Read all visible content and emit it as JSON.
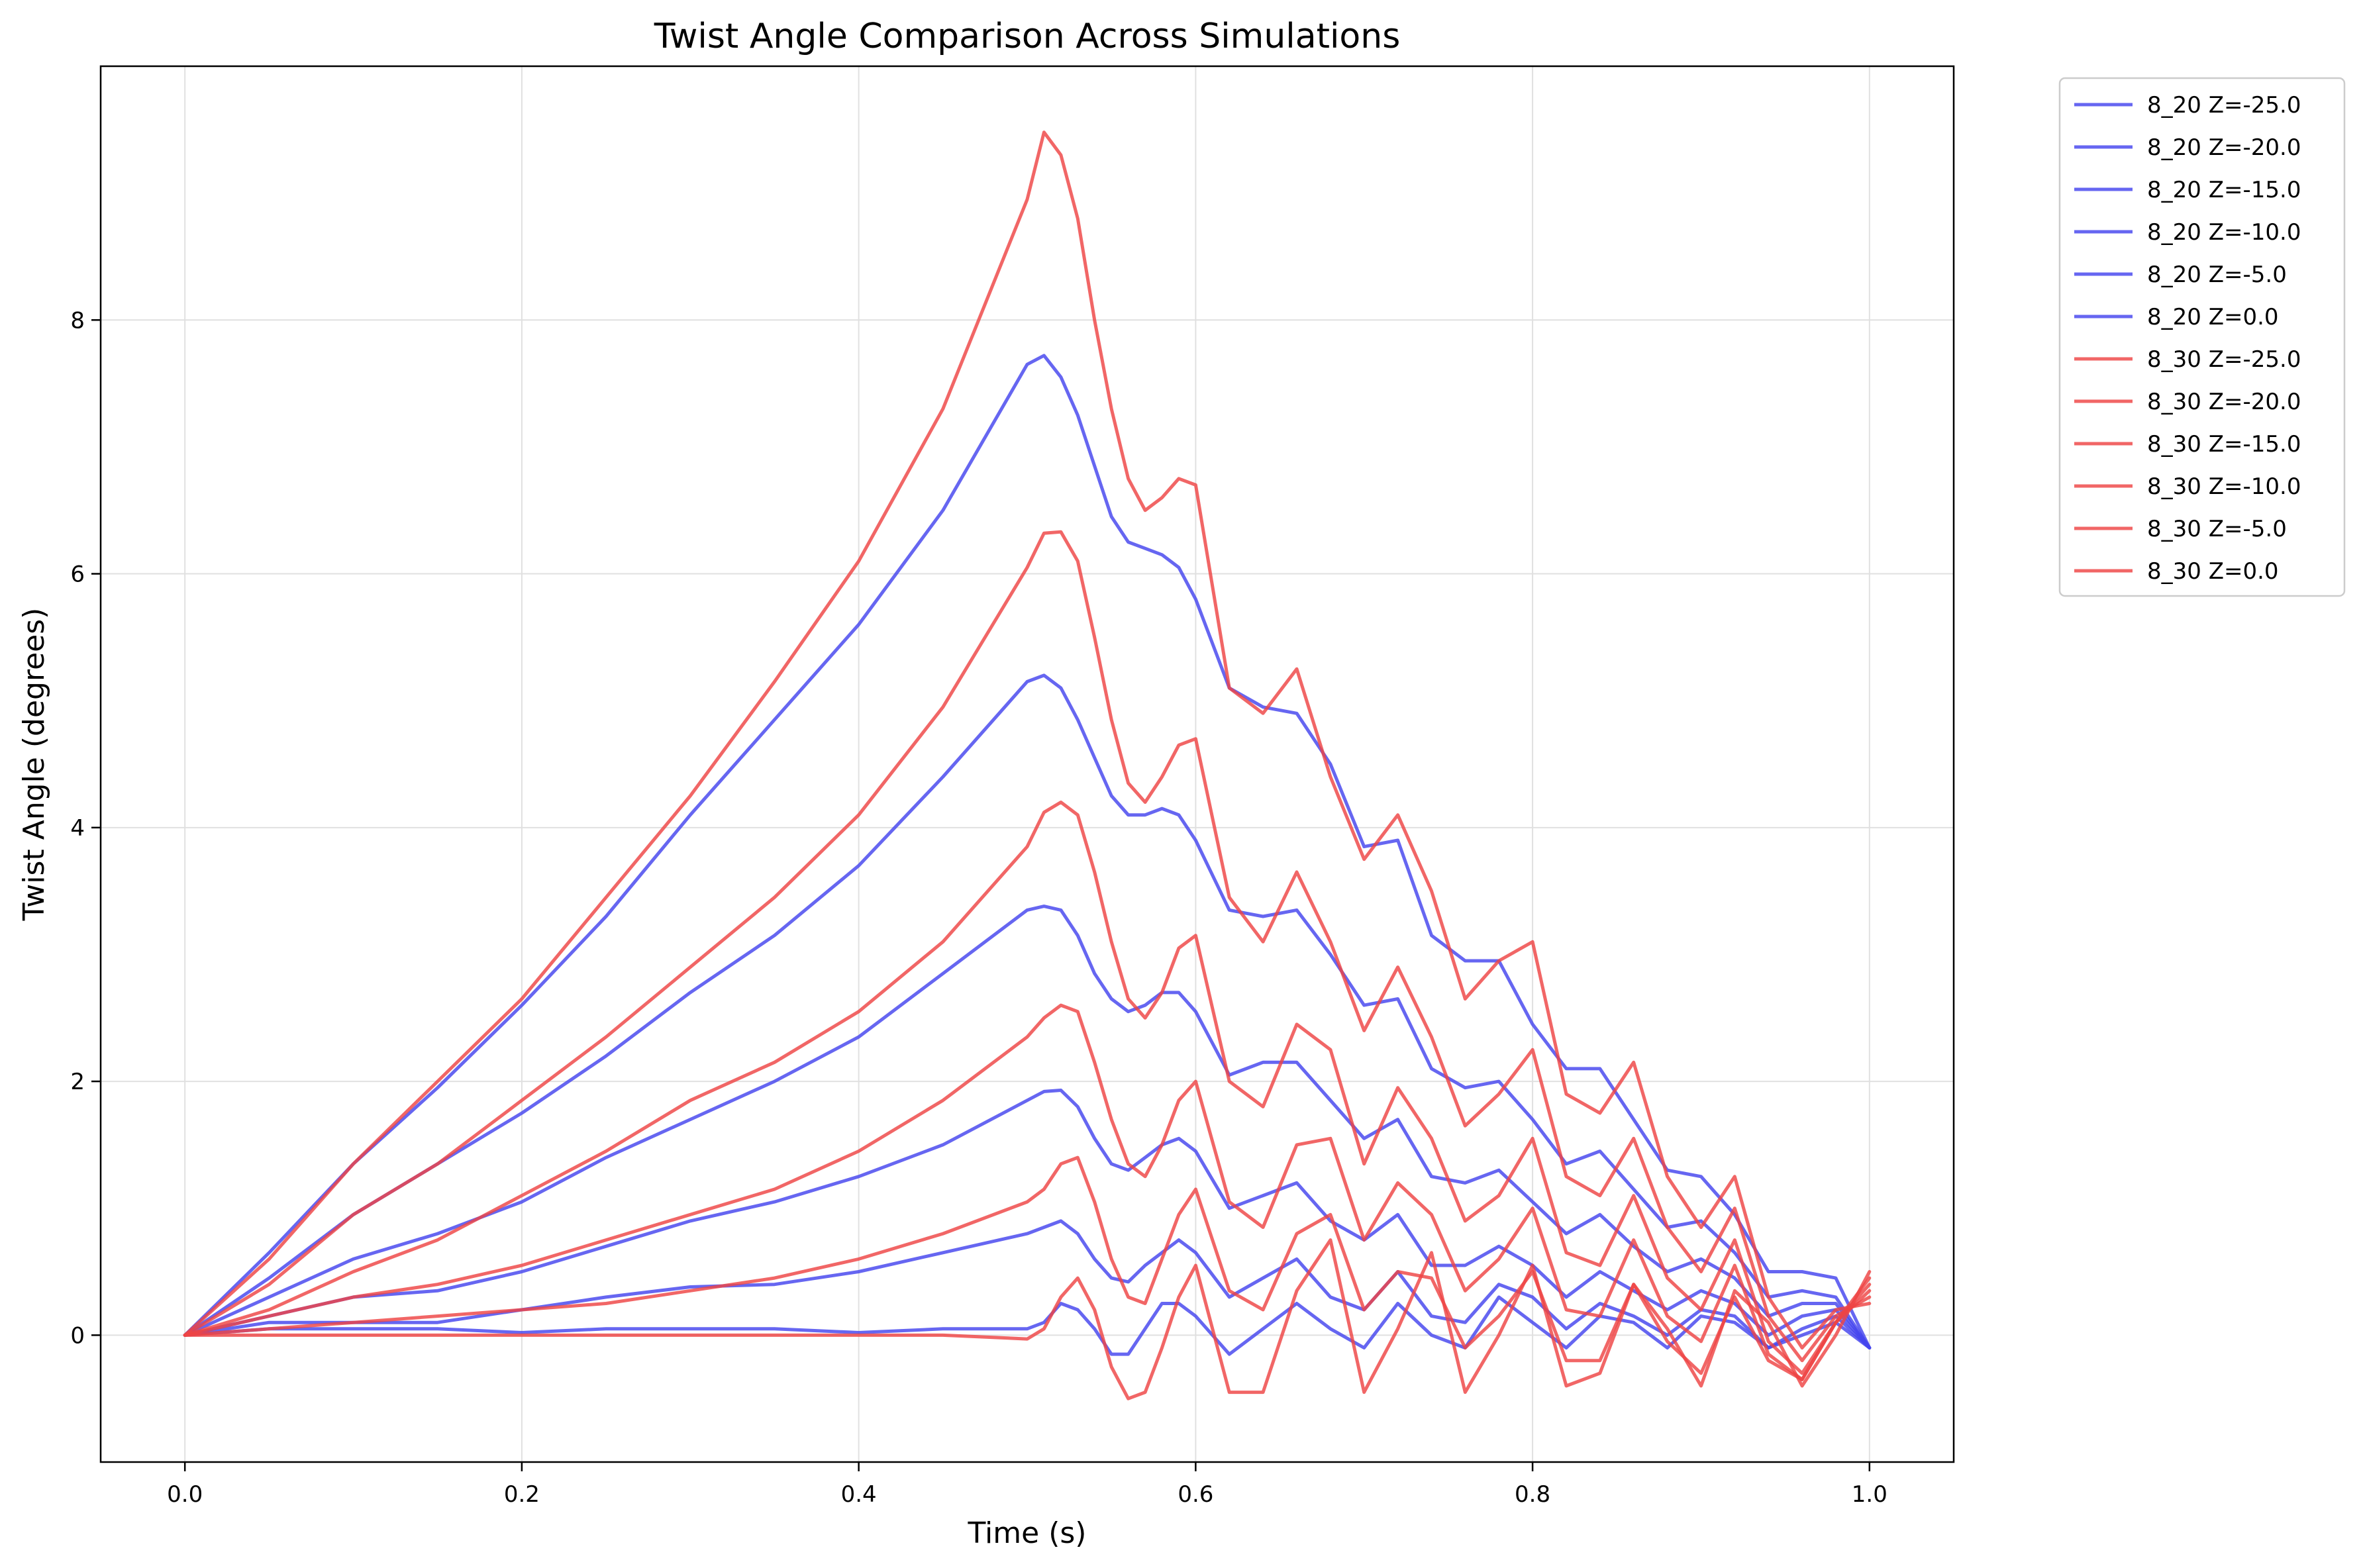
{
  "chart_data": {
    "type": "line",
    "title": "Twist Angle Comparison Across Simulations",
    "xlabel": "Time (s)",
    "ylabel": "Twist Angle (degrees)",
    "xlim": [
      -0.05,
      1.05
    ],
    "ylim": [
      -1.0,
      10.0
    ],
    "xticks": [
      "0.0",
      "0.2",
      "0.4",
      "0.6",
      "0.8",
      "1.0"
    ],
    "yticks": [
      "0",
      "2",
      "4",
      "6",
      "8"
    ],
    "grid": true,
    "legend_position": "outside-top-right",
    "colors": {
      "8_20": "#4444ee",
      "8_30": "#ee4444"
    },
    "series": [
      {
        "name": "8_20 Z=-25.0",
        "group": "8_20",
        "x": [
          0,
          0.05,
          0.1,
          0.15,
          0.2,
          0.25,
          0.3,
          0.35,
          0.4,
          0.45,
          0.5,
          0.51,
          0.52,
          0.53,
          0.54,
          0.55,
          0.56,
          0.57,
          0.58,
          0.59,
          0.6,
          0.62,
          0.64,
          0.66,
          0.68,
          0.7,
          0.72,
          0.74,
          0.76,
          0.78,
          0.8,
          0.82,
          0.84,
          0.86,
          0.88,
          0.9,
          0.92,
          0.94,
          0.96,
          0.98,
          1.0
        ],
        "values": [
          0,
          0.65,
          1.35,
          1.95,
          2.6,
          3.3,
          4.1,
          4.85,
          5.6,
          6.5,
          7.65,
          7.72,
          7.55,
          7.25,
          6.85,
          6.45,
          6.25,
          6.2,
          6.15,
          6.05,
          5.8,
          5.1,
          4.95,
          4.9,
          4.5,
          3.85,
          3.9,
          3.15,
          2.95,
          2.95,
          2.45,
          2.1,
          2.1,
          1.7,
          1.3,
          1.25,
          0.95,
          0.5,
          0.5,
          0.45,
          -0.1
        ]
      },
      {
        "name": "8_20 Z=-20.0",
        "group": "8_20",
        "x": [
          0,
          0.05,
          0.1,
          0.15,
          0.2,
          0.25,
          0.3,
          0.35,
          0.4,
          0.45,
          0.5,
          0.51,
          0.52,
          0.53,
          0.54,
          0.55,
          0.56,
          0.57,
          0.58,
          0.59,
          0.6,
          0.62,
          0.64,
          0.66,
          0.68,
          0.7,
          0.72,
          0.74,
          0.76,
          0.78,
          0.8,
          0.82,
          0.84,
          0.86,
          0.88,
          0.9,
          0.92,
          0.94,
          0.96,
          0.98,
          1.0
        ],
        "values": [
          0,
          0.45,
          0.95,
          1.35,
          1.75,
          2.2,
          2.7,
          3.15,
          3.7,
          4.4,
          5.15,
          5.2,
          5.1,
          4.85,
          4.55,
          4.25,
          4.1,
          4.1,
          4.15,
          4.1,
          3.9,
          3.35,
          3.3,
          3.35,
          3.0,
          2.6,
          2.65,
          2.1,
          1.95,
          2.0,
          1.7,
          1.35,
          1.45,
          1.15,
          0.85,
          0.9,
          0.65,
          0.3,
          0.35,
          0.3,
          -0.1
        ]
      },
      {
        "name": "8_20 Z=-15.0",
        "group": "8_20",
        "x": [
          0,
          0.05,
          0.1,
          0.15,
          0.2,
          0.25,
          0.3,
          0.35,
          0.4,
          0.45,
          0.5,
          0.51,
          0.52,
          0.53,
          0.54,
          0.55,
          0.56,
          0.57,
          0.58,
          0.59,
          0.6,
          0.62,
          0.64,
          0.66,
          0.68,
          0.7,
          0.72,
          0.74,
          0.76,
          0.78,
          0.8,
          0.82,
          0.84,
          0.86,
          0.88,
          0.9,
          0.92,
          0.94,
          0.96,
          0.98,
          1.0
        ],
        "values": [
          0,
          0.3,
          0.6,
          0.8,
          1.05,
          1.4,
          1.7,
          2.0,
          2.35,
          2.85,
          3.35,
          3.38,
          3.35,
          3.15,
          2.85,
          2.65,
          2.55,
          2.6,
          2.7,
          2.7,
          2.55,
          2.05,
          2.15,
          2.15,
          1.85,
          1.55,
          1.7,
          1.25,
          1.2,
          1.3,
          1.05,
          0.8,
          0.95,
          0.7,
          0.5,
          0.6,
          0.45,
          0.15,
          0.25,
          0.25,
          -0.1
        ]
      },
      {
        "name": "8_20 Z=-10.0",
        "group": "8_20",
        "x": [
          0,
          0.05,
          0.1,
          0.15,
          0.2,
          0.25,
          0.3,
          0.35,
          0.4,
          0.45,
          0.5,
          0.51,
          0.52,
          0.53,
          0.54,
          0.55,
          0.56,
          0.57,
          0.58,
          0.59,
          0.6,
          0.62,
          0.64,
          0.66,
          0.68,
          0.7,
          0.72,
          0.74,
          0.76,
          0.78,
          0.8,
          0.82,
          0.84,
          0.86,
          0.88,
          0.9,
          0.92,
          0.94,
          0.96,
          0.98,
          1.0
        ],
        "values": [
          0,
          0.15,
          0.3,
          0.35,
          0.5,
          0.7,
          0.9,
          1.05,
          1.25,
          1.5,
          1.85,
          1.92,
          1.93,
          1.8,
          1.55,
          1.35,
          1.3,
          1.4,
          1.5,
          1.55,
          1.45,
          1.0,
          1.1,
          1.2,
          0.9,
          0.75,
          0.95,
          0.55,
          0.55,
          0.7,
          0.55,
          0.3,
          0.5,
          0.35,
          0.2,
          0.35,
          0.25,
          0.0,
          0.15,
          0.2,
          -0.1
        ]
      },
      {
        "name": "8_20 Z=-5.0",
        "group": "8_20",
        "x": [
          0,
          0.05,
          0.1,
          0.15,
          0.2,
          0.25,
          0.3,
          0.35,
          0.4,
          0.45,
          0.5,
          0.51,
          0.52,
          0.53,
          0.54,
          0.55,
          0.56,
          0.57,
          0.58,
          0.59,
          0.6,
          0.62,
          0.64,
          0.66,
          0.68,
          0.7,
          0.72,
          0.74,
          0.76,
          0.78,
          0.8,
          0.82,
          0.84,
          0.86,
          0.88,
          0.9,
          0.92,
          0.94,
          0.96,
          0.98,
          1.0
        ],
        "values": [
          0,
          0.1,
          0.1,
          0.1,
          0.2,
          0.3,
          0.38,
          0.4,
          0.5,
          0.65,
          0.8,
          0.85,
          0.9,
          0.8,
          0.6,
          0.45,
          0.42,
          0.55,
          0.65,
          0.75,
          0.65,
          0.3,
          0.45,
          0.6,
          0.3,
          0.2,
          0.5,
          0.15,
          0.1,
          0.4,
          0.3,
          0.05,
          0.25,
          0.15,
          0.0,
          0.2,
          0.15,
          -0.1,
          0.05,
          0.15,
          -0.1
        ]
      },
      {
        "name": "8_20 Z=0.0",
        "group": "8_20",
        "x": [
          0,
          0.05,
          0.1,
          0.15,
          0.2,
          0.25,
          0.3,
          0.35,
          0.4,
          0.45,
          0.5,
          0.51,
          0.52,
          0.53,
          0.54,
          0.55,
          0.56,
          0.57,
          0.58,
          0.59,
          0.6,
          0.62,
          0.64,
          0.66,
          0.68,
          0.7,
          0.72,
          0.74,
          0.76,
          0.78,
          0.8,
          0.82,
          0.84,
          0.86,
          0.88,
          0.9,
          0.92,
          0.94,
          0.96,
          0.98,
          1.0
        ],
        "values": [
          0,
          0.05,
          0.05,
          0.05,
          0.02,
          0.05,
          0.05,
          0.05,
          0.02,
          0.05,
          0.05,
          0.1,
          0.25,
          0.2,
          0.05,
          -0.15,
          -0.15,
          0.05,
          0.25,
          0.25,
          0.15,
          -0.15,
          0.05,
          0.25,
          0.05,
          -0.1,
          0.25,
          0.0,
          -0.1,
          0.3,
          0.1,
          -0.1,
          0.15,
          0.1,
          -0.1,
          0.15,
          0.1,
          -0.1,
          0.0,
          0.1,
          -0.1
        ]
      },
      {
        "name": "8_30 Z=-25.0",
        "group": "8_30",
        "x": [
          0,
          0.05,
          0.1,
          0.15,
          0.2,
          0.25,
          0.3,
          0.35,
          0.4,
          0.45,
          0.5,
          0.51,
          0.52,
          0.53,
          0.54,
          0.55,
          0.56,
          0.57,
          0.58,
          0.59,
          0.6,
          0.62,
          0.64,
          0.66,
          0.68,
          0.7,
          0.72,
          0.74,
          0.76,
          0.78,
          0.8,
          0.82,
          0.84,
          0.86,
          0.88,
          0.9,
          0.92,
          0.94,
          0.96,
          0.98,
          1.0
        ],
        "values": [
          0,
          0.6,
          1.35,
          2.0,
          2.65,
          3.45,
          4.25,
          5.15,
          6.1,
          7.3,
          8.95,
          9.48,
          9.3,
          8.8,
          8.0,
          7.3,
          6.75,
          6.5,
          6.6,
          6.75,
          6.7,
          5.1,
          4.9,
          5.25,
          4.4,
          3.75,
          4.1,
          3.5,
          2.65,
          2.95,
          3.1,
          1.9,
          1.75,
          2.15,
          1.25,
          0.85,
          1.25,
          0.3,
          -0.1,
          0.2,
          0.25
        ]
      },
      {
        "name": "8_30 Z=-20.0",
        "group": "8_30",
        "x": [
          0,
          0.05,
          0.1,
          0.15,
          0.2,
          0.25,
          0.3,
          0.35,
          0.4,
          0.45,
          0.5,
          0.51,
          0.52,
          0.53,
          0.54,
          0.55,
          0.56,
          0.57,
          0.58,
          0.59,
          0.6,
          0.62,
          0.64,
          0.66,
          0.68,
          0.7,
          0.72,
          0.74,
          0.76,
          0.78,
          0.8,
          0.82,
          0.84,
          0.86,
          0.88,
          0.9,
          0.92,
          0.94,
          0.96,
          0.98,
          1.0
        ],
        "values": [
          0,
          0.4,
          0.95,
          1.35,
          1.85,
          2.35,
          2.9,
          3.45,
          4.1,
          4.95,
          6.05,
          6.32,
          6.33,
          6.1,
          5.5,
          4.85,
          4.35,
          4.2,
          4.4,
          4.65,
          4.7,
          3.45,
          3.1,
          3.65,
          3.1,
          2.4,
          2.9,
          2.35,
          1.65,
          1.9,
          2.25,
          1.25,
          1.1,
          1.55,
          0.85,
          0.5,
          1.0,
          0.15,
          -0.2,
          0.15,
          0.3
        ]
      },
      {
        "name": "8_30 Z=-15.0",
        "group": "8_30",
        "x": [
          0,
          0.05,
          0.1,
          0.15,
          0.2,
          0.25,
          0.3,
          0.35,
          0.4,
          0.45,
          0.5,
          0.51,
          0.52,
          0.53,
          0.54,
          0.55,
          0.56,
          0.57,
          0.58,
          0.59,
          0.6,
          0.62,
          0.64,
          0.66,
          0.68,
          0.7,
          0.72,
          0.74,
          0.76,
          0.78,
          0.8,
          0.82,
          0.84,
          0.86,
          0.88,
          0.9,
          0.92,
          0.94,
          0.96,
          0.98,
          1.0
        ],
        "values": [
          0,
          0.2,
          0.5,
          0.75,
          1.1,
          1.45,
          1.85,
          2.15,
          2.55,
          3.1,
          3.85,
          4.12,
          4.2,
          4.1,
          3.65,
          3.1,
          2.65,
          2.5,
          2.7,
          3.05,
          3.15,
          2.0,
          1.8,
          2.45,
          2.25,
          1.35,
          1.95,
          1.55,
          0.9,
          1.1,
          1.55,
          0.65,
          0.55,
          1.1,
          0.45,
          0.2,
          0.75,
          -0.05,
          -0.3,
          0.1,
          0.35
        ]
      },
      {
        "name": "8_30 Z=-10.0",
        "group": "8_30",
        "x": [
          0,
          0.05,
          0.1,
          0.15,
          0.2,
          0.25,
          0.3,
          0.35,
          0.4,
          0.45,
          0.5,
          0.51,
          0.52,
          0.53,
          0.54,
          0.55,
          0.56,
          0.57,
          0.58,
          0.59,
          0.6,
          0.62,
          0.64,
          0.66,
          0.68,
          0.7,
          0.72,
          0.74,
          0.76,
          0.78,
          0.8,
          0.82,
          0.84,
          0.86,
          0.88,
          0.9,
          0.92,
          0.94,
          0.96,
          0.98,
          1.0
        ],
        "values": [
          0,
          0.15,
          0.3,
          0.4,
          0.55,
          0.75,
          0.95,
          1.15,
          1.45,
          1.85,
          2.35,
          2.5,
          2.6,
          2.55,
          2.15,
          1.7,
          1.35,
          1.25,
          1.5,
          1.85,
          2.0,
          1.05,
          0.85,
          1.5,
          1.55,
          0.75,
          1.2,
          0.95,
          0.35,
          0.6,
          1.0,
          0.2,
          0.15,
          0.75,
          0.15,
          -0.05,
          0.55,
          -0.15,
          -0.35,
          0.1,
          0.4
        ]
      },
      {
        "name": "8_30 Z=-5.0",
        "group": "8_30",
        "x": [
          0,
          0.05,
          0.1,
          0.15,
          0.2,
          0.25,
          0.3,
          0.35,
          0.4,
          0.45,
          0.5,
          0.51,
          0.52,
          0.53,
          0.54,
          0.55,
          0.56,
          0.57,
          0.58,
          0.59,
          0.6,
          0.62,
          0.64,
          0.66,
          0.68,
          0.7,
          0.72,
          0.74,
          0.76,
          0.78,
          0.8,
          0.82,
          0.84,
          0.86,
          0.88,
          0.9,
          0.92,
          0.94,
          0.96,
          0.98,
          1.0
        ],
        "values": [
          0,
          0.05,
          0.1,
          0.15,
          0.2,
          0.25,
          0.35,
          0.45,
          0.6,
          0.8,
          1.05,
          1.15,
          1.35,
          1.4,
          1.05,
          0.6,
          0.3,
          0.25,
          0.6,
          0.95,
          1.15,
          0.35,
          0.2,
          0.8,
          0.95,
          0.2,
          0.5,
          0.45,
          -0.1,
          0.15,
          0.5,
          -0.2,
          -0.2,
          0.4,
          -0.05,
          -0.3,
          0.3,
          -0.2,
          -0.35,
          0.1,
          0.45
        ]
      },
      {
        "name": "8_30 Z=0.0",
        "group": "8_30",
        "x": [
          0,
          0.05,
          0.1,
          0.15,
          0.2,
          0.25,
          0.3,
          0.35,
          0.4,
          0.45,
          0.5,
          0.51,
          0.52,
          0.53,
          0.54,
          0.55,
          0.56,
          0.57,
          0.58,
          0.59,
          0.6,
          0.62,
          0.64,
          0.66,
          0.68,
          0.7,
          0.72,
          0.74,
          0.76,
          0.78,
          0.8,
          0.82,
          0.84,
          0.86,
          0.88,
          0.9,
          0.92,
          0.94,
          0.96,
          0.98,
          1.0
        ],
        "values": [
          0,
          0.0,
          0.0,
          0.0,
          0.0,
          0.0,
          0.0,
          0.0,
          0.0,
          0.0,
          -0.03,
          0.05,
          0.3,
          0.45,
          0.2,
          -0.25,
          -0.5,
          -0.45,
          -0.1,
          0.3,
          0.55,
          -0.45,
          -0.45,
          0.35,
          0.75,
          -0.45,
          0.05,
          0.65,
          -0.45,
          0.0,
          0.55,
          -0.4,
          -0.3,
          0.4,
          0.05,
          -0.4,
          0.35,
          0.1,
          -0.4,
          0.0,
          0.5
        ]
      }
    ]
  }
}
